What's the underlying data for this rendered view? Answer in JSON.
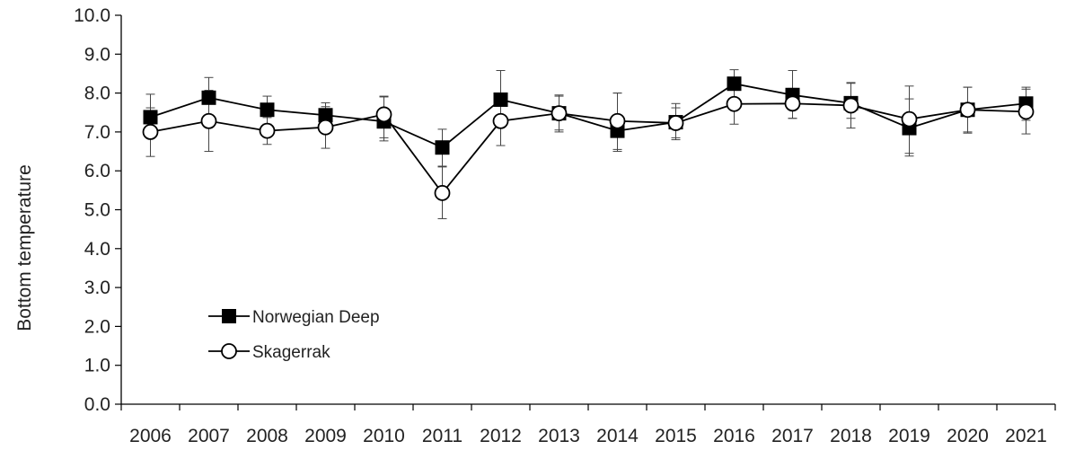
{
  "chart_data": {
    "type": "line",
    "title": "",
    "xlabel": "",
    "ylabel": "Bottom temperature",
    "ylim": [
      0,
      10
    ],
    "y_tick_step": 1,
    "y_tick_labels": [
      "0.0",
      "1.0",
      "2.0",
      "3.0",
      "4.0",
      "5.0",
      "6.0",
      "7.0",
      "8.0",
      "9.0",
      "10.0"
    ],
    "grid": false,
    "legend_position": "bottom-left",
    "categories": [
      "2006",
      "2007",
      "2008",
      "2009",
      "2010",
      "2011",
      "2012",
      "2013",
      "2014",
      "2015",
      "2016",
      "2017",
      "2018",
      "2019",
      "2020",
      "2021"
    ],
    "series": [
      {
        "name": "Norwegian Deep",
        "marker": "filled-square",
        "color": "#000000",
        "values": [
          7.38,
          7.88,
          7.57,
          7.43,
          7.27,
          6.6,
          7.83,
          7.48,
          7.03,
          7.25,
          8.24,
          7.95,
          7.74,
          7.1,
          7.57,
          7.73
        ],
        "error_low": [
          6.95,
          7.4,
          7.2,
          7.15,
          6.85,
          6.12,
          7.2,
          7.05,
          6.55,
          6.8,
          7.85,
          7.35,
          7.35,
          6.45,
          7.0,
          7.3
        ],
        "error_high": [
          7.97,
          8.4,
          7.92,
          7.75,
          7.9,
          7.07,
          8.58,
          7.92,
          8.0,
          7.73,
          8.6,
          8.58,
          8.27,
          7.85,
          8.15,
          8.15
        ]
      },
      {
        "name": "Skagerrak",
        "marker": "open-circle",
        "color": "#000000",
        "values": [
          7.0,
          7.28,
          7.03,
          7.12,
          7.45,
          5.43,
          7.28,
          7.48,
          7.28,
          7.23,
          7.72,
          7.73,
          7.68,
          7.33,
          7.57,
          7.52
        ],
        "error_low": [
          6.37,
          6.5,
          6.68,
          6.58,
          6.77,
          4.77,
          6.65,
          7.0,
          6.5,
          6.85,
          7.2,
          7.35,
          7.1,
          6.38,
          6.97,
          6.95
        ],
        "error_high": [
          7.62,
          8.07,
          7.37,
          7.65,
          7.92,
          6.1,
          7.9,
          7.95,
          8.0,
          7.62,
          8.25,
          8.12,
          8.25,
          8.18,
          8.15,
          8.1
        ]
      }
    ]
  }
}
